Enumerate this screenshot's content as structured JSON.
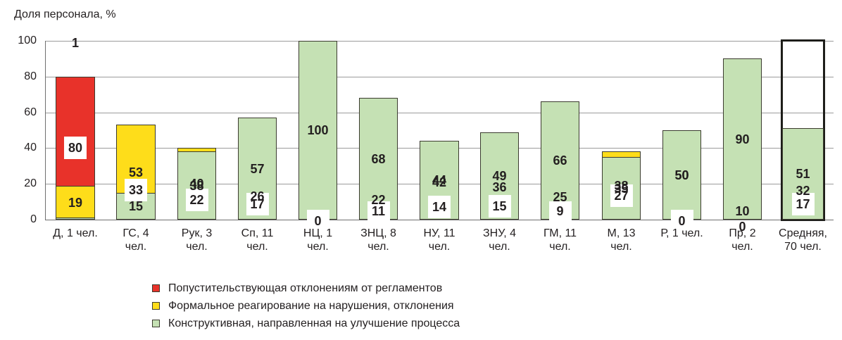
{
  "chart_data": {
    "type": "bar",
    "stacked": true,
    "title": "",
    "ylabel": "Доля персонала, %",
    "xlabel": "",
    "ylim": [
      0,
      100
    ],
    "yticks": [
      0,
      20,
      40,
      60,
      80,
      100
    ],
    "grid": true,
    "legend_position": "bottom",
    "categories": [
      "Д, 1 чел.",
      "ГС, 4 чел.",
      "Рук, 3 чел.",
      "Сп, 11 чел.",
      "НЦ, 1 чел.",
      "ЗНЦ, 8 чел.",
      "НУ, 11 чел.",
      "ЗНУ, 4 чел.",
      "ГМ, 11 чел.",
      "М, 13 чел.",
      "Р, 1 чел.",
      "Пр, 2 чел.",
      "Средняя, 70 чел."
    ],
    "category_lines": [
      [
        "Д, 1 чел."
      ],
      [
        "ГС, 4",
        "чел."
      ],
      [
        "Рук, 3",
        "чел."
      ],
      [
        "Сп, 11",
        "чел."
      ],
      [
        "НЦ, 1",
        "чел."
      ],
      [
        "ЗНЦ, 8",
        "чел."
      ],
      [
        "НУ, 11",
        "чел."
      ],
      [
        "ЗНУ, 4",
        "чел."
      ],
      [
        "ГМ, 11",
        "чел."
      ],
      [
        "М, 13",
        "чел."
      ],
      [
        "Р, 1 чел."
      ],
      [
        "Пр, 2",
        "чел."
      ],
      [
        "Средняя,",
        "70 чел."
      ]
    ],
    "series": [
      {
        "name": "Попустительствующая отклонениям от регламентов",
        "color": "#e8322a",
        "key": "red",
        "values": [
          80,
          33,
          22,
          17,
          0,
          11,
          14,
          15,
          9,
          27,
          0,
          0,
          17
        ]
      },
      {
        "name": "Формальное реагирование на нарушения, отклонения",
        "color": "#fedd1a",
        "key": "yellow",
        "values": [
          19,
          53,
          40,
          26,
          0,
          22,
          42,
          36,
          25,
          38,
          50,
          10,
          32
        ]
      },
      {
        "name": "Конструктивная, направленная на улучшение процесса",
        "color": "#c5e1b4",
        "key": "green",
        "values": [
          1,
          15,
          38,
          57,
          100,
          68,
          44,
          49,
          66,
          35,
          50,
          90,
          51
        ]
      }
    ],
    "highlighted_category": "Средняя, 70 чел."
  },
  "legend": {
    "items": [
      {
        "label": "Попустительствующая отклонениям от регламентов",
        "color": "#e8322a"
      },
      {
        "label": "Формальное реагирование на нарушения, отклонения",
        "color": "#fedd1a"
      },
      {
        "label": "Конструктивная, направленная на улучшение процесса",
        "color": "#c5e1b4"
      }
    ]
  }
}
